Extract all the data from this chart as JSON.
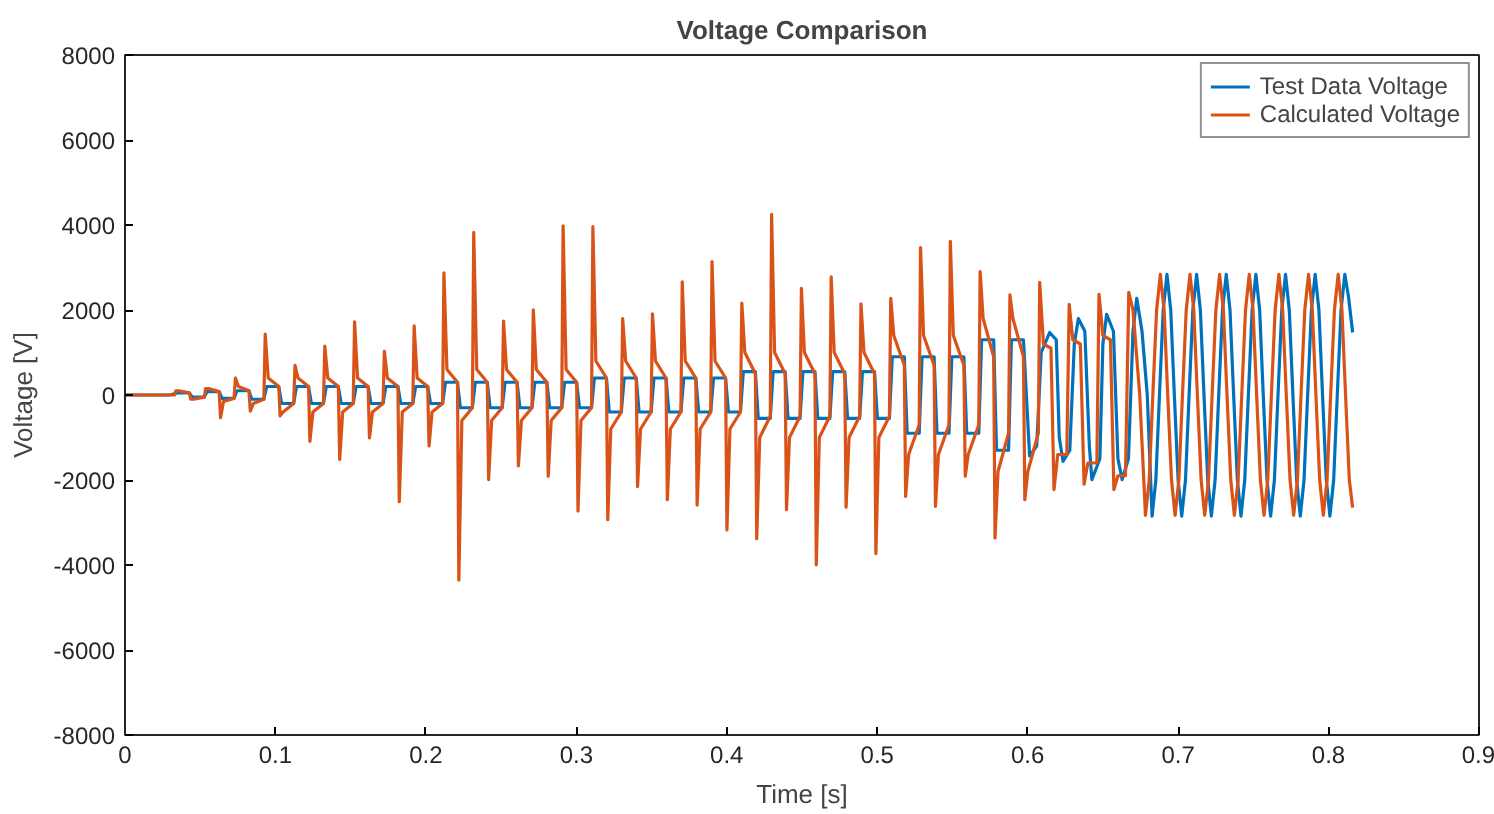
{
  "chart_data": {
    "type": "line",
    "title": "Voltage Comparison",
    "xlabel": "Time [s]",
    "ylabel": "Voltage [V]",
    "xlim": [
      0,
      0.9
    ],
    "xticks": [
      0,
      0.1,
      0.2,
      0.3,
      0.4,
      0.5,
      0.6,
      0.7,
      0.8,
      0.9
    ],
    "ylim": [
      -8000,
      8000
    ],
    "yticks": [
      -8000,
      -6000,
      -4000,
      -2000,
      0,
      2000,
      4000,
      6000,
      8000
    ],
    "grid": false,
    "legend": "top right",
    "marker": "none",
    "line_style": "solid",
    "series": [
      {
        "name": "Test Data Voltage",
        "color": "#0072bd",
        "x": [
          0,
          0.03,
          0.0348,
          0.0428,
          0.0447,
          0.0527,
          0.0546,
          0.0626,
          0.0645,
          0.0725,
          0.0744,
          0.0824,
          0.0843,
          0.0923,
          0.0942,
          0.1022,
          0.1041,
          0.1121,
          0.114,
          0.122,
          0.1239,
          0.1319,
          0.1338,
          0.1418,
          0.1437,
          0.1517,
          0.1536,
          0.1616,
          0.1635,
          0.1715,
          0.1734,
          0.1814,
          0.1833,
          0.1913,
          0.1932,
          0.2012,
          0.2031,
          0.2111,
          0.213,
          0.221,
          0.2229,
          0.2309,
          0.2328,
          0.2408,
          0.2427,
          0.2507,
          0.2526,
          0.2606,
          0.2625,
          0.2705,
          0.2724,
          0.2804,
          0.2823,
          0.2903,
          0.2922,
          0.3002,
          0.3021,
          0.3101,
          0.312,
          0.32,
          0.3219,
          0.3299,
          0.3318,
          0.3398,
          0.3417,
          0.3497,
          0.3516,
          0.3596,
          0.3615,
          0.3695,
          0.3714,
          0.3794,
          0.3813,
          0.3893,
          0.3912,
          0.3992,
          0.4011,
          0.4091,
          0.411,
          0.419,
          0.4209,
          0.4289,
          0.4308,
          0.4388,
          0.4407,
          0.4487,
          0.4506,
          0.4586,
          0.4605,
          0.4685,
          0.4704,
          0.4784,
          0.4803,
          0.4883,
          0.4902,
          0.4982,
          0.5001,
          0.5081,
          0.51,
          0.518,
          0.5199,
          0.5279,
          0.5298,
          0.5378,
          0.5397,
          0.5477,
          0.5496,
          0.5576,
          0.5595,
          0.5675,
          0.5694,
          0.5774,
          0.5793,
          0.5873,
          0.5892,
          0.5972,
          0.6013,
          0.606,
          0.609,
          0.6146,
          0.619,
          0.621,
          0.6235,
          0.628,
          0.631,
          0.6337,
          0.638,
          0.641,
          0.6427,
          0.648,
          0.65,
          0.6525,
          0.657,
          0.66,
          0.6628,
          0.667,
          0.67,
          0.6725,
          0.676,
          0.6795,
          0.6827,
          0.6852,
          0.6876,
          0.6901,
          0.6926,
          0.6951,
          0.6975,
          0.7,
          0.7024,
          0.7049,
          0.7073,
          0.7098,
          0.7123,
          0.7148,
          0.7172,
          0.7197,
          0.7221,
          0.7246,
          0.727,
          0.7295,
          0.732,
          0.7345,
          0.7369,
          0.7394,
          0.7418,
          0.7443,
          0.7467,
          0.7492,
          0.7517,
          0.7542,
          0.7566,
          0.7591,
          0.7615,
          0.764,
          0.7664,
          0.7689,
          0.7714,
          0.7739,
          0.7763,
          0.7788,
          0.7812,
          0.7837,
          0.7861,
          0.7886,
          0.7911,
          0.7936,
          0.796,
          0.7985,
          0.8009,
          0.8034,
          0.8058,
          0.8083,
          0.8108,
          0.8133,
          0.816
        ],
        "values": [
          0,
          0,
          50,
          50,
          -50,
          -50,
          80,
          80,
          -80,
          -80,
          100,
          100,
          -100,
          -100,
          200,
          200,
          -200,
          -200,
          200,
          200,
          -200,
          -200,
          200,
          200,
          -200,
          -200,
          200,
          200,
          -200,
          -200,
          200,
          200,
          -200,
          -200,
          200,
          200,
          -200,
          -200,
          300,
          300,
          -300,
          -300,
          300,
          300,
          -300,
          -300,
          300,
          300,
          -300,
          -300,
          300,
          300,
          -300,
          -300,
          300,
          300,
          -300,
          -300,
          400,
          400,
          -400,
          -400,
          400,
          400,
          -400,
          -400,
          400,
          400,
          -400,
          -400,
          400,
          400,
          -400,
          -400,
          400,
          400,
          -400,
          -400,
          550,
          550,
          -550,
          -550,
          550,
          550,
          -550,
          -550,
          550,
          550,
          -550,
          -550,
          550,
          550,
          -550,
          -550,
          550,
          550,
          -550,
          -550,
          900,
          900,
          -900,
          -900,
          900,
          900,
          -900,
          -900,
          900,
          900,
          -900,
          -900,
          1300,
          1300,
          -1300,
          -1300,
          1300,
          1300,
          -1435,
          -1200,
          1000,
          1470,
          1300,
          -1000,
          -1560,
          -1300,
          1200,
          1800,
          1500,
          -1200,
          -1990,
          -1500,
          1200,
          1900,
          1500,
          -1500,
          -1990,
          -1500,
          1500,
          2275,
          1500,
          0,
          -2850,
          -2000,
          0,
          2000,
          2840,
          2000,
          0,
          -2000,
          -2850,
          -2000,
          0,
          2000,
          2840,
          2000,
          0,
          -2000,
          -2850,
          -2000,
          0,
          2000,
          2840,
          2000,
          0,
          -2000,
          -2850,
          -2000,
          0,
          2000,
          2840,
          2000,
          0,
          -2000,
          -2850,
          -2000,
          0,
          2000,
          2840,
          2000,
          0,
          -2000,
          -2850,
          -2000,
          0,
          2000,
          2840,
          2000,
          0,
          -2000,
          -2850,
          -2000,
          0,
          2000,
          2840,
          2300,
          1470
        ]
      },
      {
        "name": "Calculated Voltage",
        "color": "#d95319",
        "x": [
          0,
          0.033,
          0.0338,
          0.0358,
          0.0428,
          0.0437,
          0.0457,
          0.0527,
          0.0536,
          0.0556,
          0.0626,
          0.0635,
          0.0655,
          0.0725,
          0.0734,
          0.0754,
          0.0824,
          0.0833,
          0.0853,
          0.0923,
          0.0932,
          0.0952,
          0.1022,
          0.1031,
          0.1051,
          0.1121,
          0.113,
          0.115,
          0.122,
          0.1229,
          0.1249,
          0.1319,
          0.1328,
          0.1348,
          0.1418,
          0.1427,
          0.1447,
          0.1517,
          0.1526,
          0.1546,
          0.1616,
          0.1625,
          0.1645,
          0.1715,
          0.1724,
          0.1744,
          0.1814,
          0.1823,
          0.1843,
          0.1913,
          0.1922,
          0.1942,
          0.2012,
          0.2021,
          0.2041,
          0.2111,
          0.212,
          0.214,
          0.221,
          0.2219,
          0.2239,
          0.2309,
          0.2318,
          0.2338,
          0.2408,
          0.2417,
          0.2437,
          0.2507,
          0.2516,
          0.2536,
          0.2606,
          0.2615,
          0.2635,
          0.2705,
          0.2714,
          0.2734,
          0.2804,
          0.2813,
          0.2833,
          0.2903,
          0.2912,
          0.2932,
          0.3002,
          0.3011,
          0.3031,
          0.3101,
          0.311,
          0.313,
          0.32,
          0.3209,
          0.3229,
          0.3299,
          0.3308,
          0.3328,
          0.3398,
          0.3407,
          0.3427,
          0.3497,
          0.3506,
          0.3526,
          0.3596,
          0.3605,
          0.3625,
          0.3695,
          0.3704,
          0.3724,
          0.3794,
          0.3803,
          0.3823,
          0.3893,
          0.3902,
          0.3922,
          0.3992,
          0.4001,
          0.4021,
          0.4091,
          0.41,
          0.412,
          0.419,
          0.4199,
          0.4219,
          0.4289,
          0.4298,
          0.4318,
          0.4388,
          0.4397,
          0.4417,
          0.4487,
          0.4496,
          0.4516,
          0.4586,
          0.4595,
          0.4615,
          0.4685,
          0.4694,
          0.4714,
          0.4784,
          0.4793,
          0.4813,
          0.4883,
          0.4892,
          0.4912,
          0.4982,
          0.4991,
          0.5011,
          0.5081,
          0.509,
          0.511,
          0.518,
          0.5189,
          0.5209,
          0.5279,
          0.5288,
          0.5308,
          0.5378,
          0.5387,
          0.5407,
          0.5477,
          0.5486,
          0.5506,
          0.5576,
          0.5585,
          0.5605,
          0.5675,
          0.5684,
          0.5704,
          0.5774,
          0.5783,
          0.5803,
          0.5873,
          0.5882,
          0.5902,
          0.5972,
          0.5981,
          0.6001,
          0.6071,
          0.608,
          0.6105,
          0.6155,
          0.6175,
          0.62,
          0.626,
          0.6276,
          0.63,
          0.635,
          0.6375,
          0.64,
          0.646,
          0.6474,
          0.65,
          0.655,
          0.6573,
          0.66,
          0.665,
          0.6672,
          0.67,
          0.6745,
          0.6783,
          0.6808,
          0.6832,
          0.6857,
          0.6882,
          0.6907,
          0.6931,
          0.6956,
          0.698,
          0.7005,
          0.7029,
          0.7054,
          0.7079,
          0.7104,
          0.7128,
          0.7153,
          0.7177,
          0.7202,
          0.7226,
          0.7251,
          0.7276,
          0.7301,
          0.7325,
          0.735,
          0.7374,
          0.7399,
          0.7423,
          0.7448,
          0.7473,
          0.7498,
          0.7522,
          0.7547,
          0.7571,
          0.7596,
          0.762,
          0.7645,
          0.767,
          0.7695,
          0.7719,
          0.7744,
          0.7768,
          0.7793,
          0.7817,
          0.7842,
          0.7867,
          0.7892,
          0.7916,
          0.7941,
          0.7965,
          0.799,
          0.8014,
          0.8039,
          0.8064,
          0.8089,
          0.8113,
          0.8138,
          0.816
        ],
        "values": [
          0,
          0,
          100,
          100,
          50,
          -100,
          -100,
          -50,
          150,
          150,
          80,
          -535,
          -150,
          -80,
          400,
          200,
          100,
          -380,
          -200,
          -100,
          1435,
          400,
          200,
          -490,
          -400,
          -200,
          695,
          400,
          200,
          -1090,
          -400,
          -200,
          1150,
          400,
          200,
          -1515,
          -400,
          -200,
          1720,
          400,
          200,
          -1010,
          -400,
          -200,
          1030,
          400,
          200,
          -2510,
          -400,
          -200,
          1625,
          400,
          200,
          -1200,
          -400,
          -200,
          2875,
          600,
          300,
          -4355,
          -600,
          -300,
          3825,
          600,
          300,
          -1990,
          -600,
          -300,
          1740,
          600,
          300,
          -1670,
          -600,
          -300,
          2005,
          600,
          300,
          -1910,
          -600,
          -300,
          3980,
          600,
          300,
          -2730,
          -600,
          -300,
          3960,
          800,
          400,
          -2935,
          -800,
          -400,
          1800,
          800,
          400,
          -2150,
          -800,
          -400,
          1910,
          800,
          400,
          -2465,
          -800,
          -400,
          2665,
          800,
          400,
          -2590,
          -800,
          -400,
          3140,
          800,
          400,
          -3175,
          -800,
          -400,
          2165,
          1000,
          500,
          -3380,
          -1000,
          -500,
          4250,
          1000,
          500,
          -2700,
          -1000,
          -500,
          2510,
          1000,
          500,
          -3995,
          -1000,
          -500,
          2780,
          1000,
          500,
          -2640,
          -1000,
          -500,
          2145,
          1000,
          500,
          -3730,
          -1000,
          -500,
          2275,
          1400,
          700,
          -2385,
          -1400,
          -700,
          3470,
          1400,
          700,
          -2620,
          -1400,
          -700,
          3615,
          1400,
          700,
          -1910,
          -1400,
          -700,
          2905,
          1800,
          900,
          -3365,
          -1800,
          -900,
          2355,
          1800,
          900,
          -2465,
          -1800,
          -900,
          2650,
          1200,
          1100,
          -2225,
          -1400,
          -1400,
          2130,
          1300,
          1200,
          -2100,
          -1600,
          -1600,
          2370,
          1400,
          1300,
          -2225,
          -1900,
          -1900,
          2415,
          2000,
          0,
          -2830,
          -2000,
          0,
          2000,
          2840,
          2000,
          0,
          -2000,
          -2830,
          -2000,
          0,
          2000,
          2840,
          2000,
          0,
          -2000,
          -2830,
          -2000,
          0,
          2000,
          2840,
          2000,
          0,
          -2000,
          -2830,
          -2000,
          0,
          2000,
          2840,
          2000,
          0,
          -2000,
          -2830,
          -2000,
          0,
          2000,
          2840,
          2000,
          0,
          -2000,
          -2830,
          -2000,
          0,
          2000,
          2840,
          2000,
          0,
          -2000,
          -2830,
          -2000,
          0,
          2000,
          2840,
          2000,
          0,
          -2000,
          -2650
        ]
      }
    ]
  }
}
